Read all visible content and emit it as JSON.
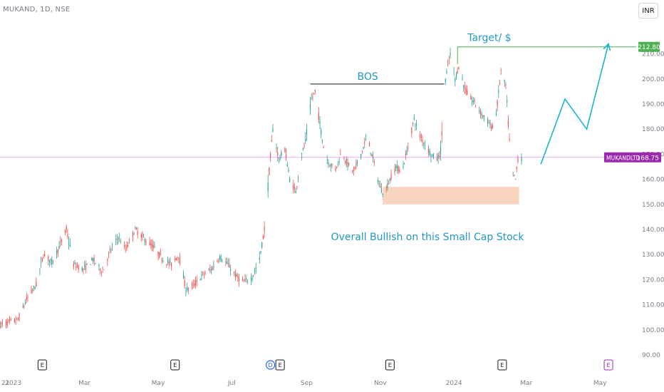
{
  "header": {
    "symbol": "MUKAND, 1D, NSE",
    "currency": "INR"
  },
  "colors": {
    "up": "#26a69a",
    "down": "#ef5350",
    "price_line": "#e040fb",
    "tag_purple": "#9c27b0",
    "target_green": "#4caf50",
    "annotation_blue": "#2196c8",
    "zone_fill": "#f8cdb4"
  },
  "chart_data": {
    "type": "candlestick",
    "y_axis": {
      "ticks": [
        90,
        100,
        110,
        120,
        130,
        140,
        150,
        160,
        170,
        180,
        190,
        200,
        210
      ],
      "tick_labels": [
        "90.00",
        "100.00",
        "110.00",
        "120.00",
        "130.00",
        "140.00",
        "150.00",
        "160.00",
        "170.00",
        "180.00",
        "190.00",
        "200.00",
        "210.00"
      ],
      "range": [
        88,
        215
      ]
    },
    "x_axis": {
      "labels": [
        "21",
        "2023",
        "Mar",
        "May",
        "Jul",
        "Sep",
        "Nov",
        "2024",
        "Mar",
        "May"
      ],
      "label_dates": [
        "2022-12-21",
        "2023-01-01",
        "2023-03-01",
        "2023-05-01",
        "2023-07-01",
        "2023-09-01",
        "2023-11-01",
        "2024-01-01",
        "2024-03-01",
        "2024-05-01"
      ],
      "range": [
        "2022-12-21",
        "2024-05-31"
      ]
    },
    "last_price": {
      "ticker": "MUKANDLTD",
      "value": 168.75
    },
    "target_price": 212.8,
    "waypoints": [
      [
        "2022-12-21",
        102
      ],
      [
        "2023-01-05",
        104
      ],
      [
        "2023-01-12",
        112
      ],
      [
        "2023-01-20",
        118
      ],
      [
        "2023-01-26",
        130
      ],
      [
        "2023-02-02",
        127
      ],
      [
        "2023-02-08",
        133
      ],
      [
        "2023-02-14",
        140
      ],
      [
        "2023-02-20",
        126
      ],
      [
        "2023-02-28",
        124
      ],
      [
        "2023-03-08",
        128
      ],
      [
        "2023-03-16",
        123
      ],
      [
        "2023-03-22",
        131
      ],
      [
        "2023-03-29",
        137
      ],
      [
        "2023-04-04",
        132
      ],
      [
        "2023-04-12",
        140
      ],
      [
        "2023-04-20",
        136
      ],
      [
        "2023-04-27",
        133
      ],
      [
        "2023-05-05",
        128
      ],
      [
        "2023-05-12",
        126
      ],
      [
        "2023-05-18",
        130
      ],
      [
        "2023-05-24",
        116
      ],
      [
        "2023-05-31",
        118
      ],
      [
        "2023-06-07",
        122
      ],
      [
        "2023-06-14",
        124
      ],
      [
        "2023-06-21",
        129
      ],
      [
        "2023-06-28",
        126
      ],
      [
        "2023-07-05",
        121
      ],
      [
        "2023-07-11",
        119
      ],
      [
        "2023-07-18",
        121
      ],
      [
        "2023-07-24",
        128
      ],
      [
        "2023-07-28",
        140
      ],
      [
        "2023-08-01",
        163
      ],
      [
        "2023-08-04",
        180
      ],
      [
        "2023-08-09",
        168
      ],
      [
        "2023-08-14",
        172
      ],
      [
        "2023-08-18",
        160
      ],
      [
        "2023-08-23",
        155
      ],
      [
        "2023-08-27",
        168
      ],
      [
        "2023-08-31",
        175
      ],
      [
        "2023-09-05",
        192
      ],
      [
        "2023-09-08",
        195
      ],
      [
        "2023-09-12",
        182
      ],
      [
        "2023-09-16",
        170
      ],
      [
        "2023-09-20",
        166
      ],
      [
        "2023-09-25",
        164
      ],
      [
        "2023-09-30",
        171
      ],
      [
        "2023-10-05",
        166
      ],
      [
        "2023-10-10",
        163
      ],
      [
        "2023-10-16",
        170
      ],
      [
        "2023-10-21",
        177
      ],
      [
        "2023-10-26",
        168
      ],
      [
        "2023-10-31",
        158
      ],
      [
        "2023-11-04",
        154
      ],
      [
        "2023-11-09",
        160
      ],
      [
        "2023-11-14",
        165
      ],
      [
        "2023-11-19",
        163
      ],
      [
        "2023-11-25",
        175
      ],
      [
        "2023-11-29",
        184
      ],
      [
        "2023-12-03",
        178
      ],
      [
        "2023-12-08",
        174
      ],
      [
        "2023-12-13",
        170
      ],
      [
        "2023-12-18",
        168
      ],
      [
        "2023-12-21",
        171
      ],
      [
        "2023-12-25",
        200
      ],
      [
        "2023-12-29",
        210
      ],
      [
        "2024-01-02",
        200
      ],
      [
        "2024-01-05",
        205
      ],
      [
        "2024-01-10",
        196
      ],
      [
        "2024-01-15",
        192
      ],
      [
        "2024-01-19",
        190
      ],
      [
        "2024-01-24",
        186
      ],
      [
        "2024-01-29",
        183
      ],
      [
        "2024-02-03",
        180
      ],
      [
        "2024-02-06",
        190
      ],
      [
        "2024-02-09",
        203
      ],
      [
        "2024-02-13",
        197
      ],
      [
        "2024-02-16",
        175
      ],
      [
        "2024-02-19",
        162
      ],
      [
        "2024-02-21",
        160
      ],
      [
        "2024-02-23",
        168
      ],
      [
        "2024-02-26",
        168.75
      ]
    ],
    "drawings": {
      "bos_label": "BOS",
      "bos_level": 198,
      "bos_from": "2023-09-04",
      "bos_to": "2023-12-24",
      "target_label": "Target/ $",
      "target_from": "2024-01-04",
      "demand_zone": {
        "from": "2023-11-03",
        "to": "2024-02-24",
        "low": 150,
        "high": 157
      },
      "projection": [
        [
          "2024-03-13",
          166
        ],
        [
          "2024-04-02",
          192
        ],
        [
          "2024-04-20",
          180
        ],
        [
          "2024-05-08",
          214
        ]
      ],
      "projection_arrow": true,
      "note": "Overall Bullish on this Small Cap Stock"
    },
    "events": [
      {
        "label": "E",
        "date": "2023-01-25",
        "color": "#131722"
      },
      {
        "label": "E",
        "date": "2023-05-15",
        "color": "#131722"
      },
      {
        "label": "D",
        "date": "2023-08-02",
        "color": "#2962ff"
      },
      {
        "label": "E",
        "date": "2023-08-10",
        "color": "#131722"
      },
      {
        "label": "E",
        "date": "2023-11-09",
        "color": "#131722"
      },
      {
        "label": "E",
        "date": "2024-02-10",
        "color": "#131722"
      },
      {
        "label": "E",
        "date": "2024-05-08",
        "color": "#9c27b0"
      }
    ]
  }
}
